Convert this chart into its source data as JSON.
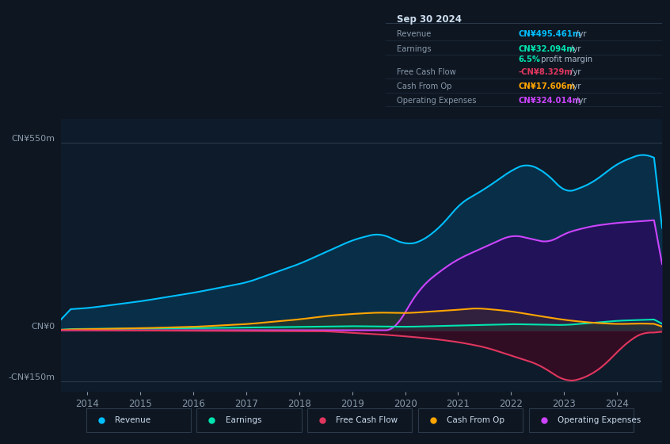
{
  "bg_color": "#0e1621",
  "chart_bg": "#0d1b2a",
  "y_label_top": "CN¥550m",
  "y_label_zero": "CN¥0",
  "y_label_bottom": "-CN¥150m",
  "x_ticks": [
    2014,
    2015,
    2016,
    2017,
    2018,
    2019,
    2020,
    2021,
    2022,
    2023,
    2024
  ],
  "ylim": [
    -180,
    620
  ],
  "ytick_vals": [
    550,
    0,
    -150
  ],
  "info_title": "Sep 30 2024",
  "info_rows": [
    {
      "label": "Revenue",
      "value": "CN¥495.461m",
      "suffix": " /yr",
      "color": "#00bfff"
    },
    {
      "label": "Earnings",
      "value": "CN¥32.094m",
      "suffix": " /yr",
      "color": "#00e5b0"
    },
    {
      "label": "",
      "value": "6.5%",
      "suffix": " profit margin",
      "color": "#00e5b0"
    },
    {
      "label": "Free Cash Flow",
      "value": "-CN¥8.329m",
      "suffix": " /yr",
      "color": "#e0365e"
    },
    {
      "label": "Cash From Op",
      "value": "CN¥17.606m",
      "suffix": " /yr",
      "color": "#ffa500"
    },
    {
      "label": "Operating Expenses",
      "value": "CN¥324.014m",
      "suffix": " /yr",
      "color": "#cc44ff"
    }
  ],
  "legend_items": [
    {
      "label": "Revenue",
      "color": "#00bfff"
    },
    {
      "label": "Earnings",
      "color": "#00e5b0"
    },
    {
      "label": "Free Cash Flow",
      "color": "#e0365e"
    },
    {
      "label": "Cash From Op",
      "color": "#ffa500"
    },
    {
      "label": "Operating Expenses",
      "color": "#cc44ff"
    }
  ],
  "revenue_pts_x": [
    2013.5,
    2014.0,
    2015.0,
    2016.0,
    2017.0,
    2018.0,
    2018.5,
    2019.0,
    2019.5,
    2020.0,
    2020.3,
    2020.7,
    2021.0,
    2021.5,
    2022.0,
    2022.3,
    2022.7,
    2023.0,
    2023.5,
    2024.0,
    2024.5,
    2024.8
  ],
  "revenue_pts_y": [
    60,
    65,
    85,
    110,
    140,
    195,
    230,
    265,
    285,
    250,
    260,
    310,
    370,
    415,
    470,
    490,
    455,
    400,
    430,
    490,
    520,
    495
  ],
  "opex_pts_x": [
    2013.5,
    2019.8,
    2020.0,
    2020.3,
    2020.7,
    2021.0,
    2021.5,
    2022.0,
    2022.3,
    2022.7,
    2023.0,
    2023.5,
    2024.0,
    2024.5,
    2024.8
  ],
  "opex_pts_y": [
    0,
    0,
    60,
    130,
    180,
    210,
    245,
    280,
    270,
    255,
    285,
    305,
    315,
    320,
    324
  ],
  "earnings_pts_x": [
    2013.5,
    2014,
    2015,
    2016,
    2017,
    2018,
    2019,
    2020,
    2021,
    2022,
    2023,
    2024,
    2024.8
  ],
  "earnings_pts_y": [
    3,
    4,
    5,
    6,
    8,
    10,
    12,
    10,
    14,
    18,
    15,
    28,
    32
  ],
  "fcf_pts_x": [
    2013.5,
    2018.5,
    2019.0,
    2019.5,
    2020.0,
    2020.5,
    2021.0,
    2021.5,
    2022.0,
    2022.5,
    2023.0,
    2023.3,
    2023.7,
    2024.0,
    2024.3,
    2024.5,
    2024.8
  ],
  "fcf_pts_y": [
    0,
    -3,
    -8,
    -12,
    -18,
    -25,
    -35,
    -50,
    -75,
    -100,
    -150,
    -145,
    -110,
    -60,
    -20,
    -5,
    -8
  ],
  "cfop_pts_x": [
    2013.5,
    2014,
    2015,
    2016,
    2017,
    2018,
    2018.5,
    2019,
    2019.5,
    2020.0,
    2020.5,
    2021.0,
    2021.3,
    2021.7,
    2022.0,
    2022.5,
    2023.0,
    2023.5,
    2024.0,
    2024.5,
    2024.8
  ],
  "cfop_pts_y": [
    2,
    3,
    6,
    10,
    18,
    32,
    42,
    48,
    52,
    50,
    55,
    60,
    65,
    60,
    55,
    42,
    30,
    22,
    18,
    20,
    17.6
  ]
}
